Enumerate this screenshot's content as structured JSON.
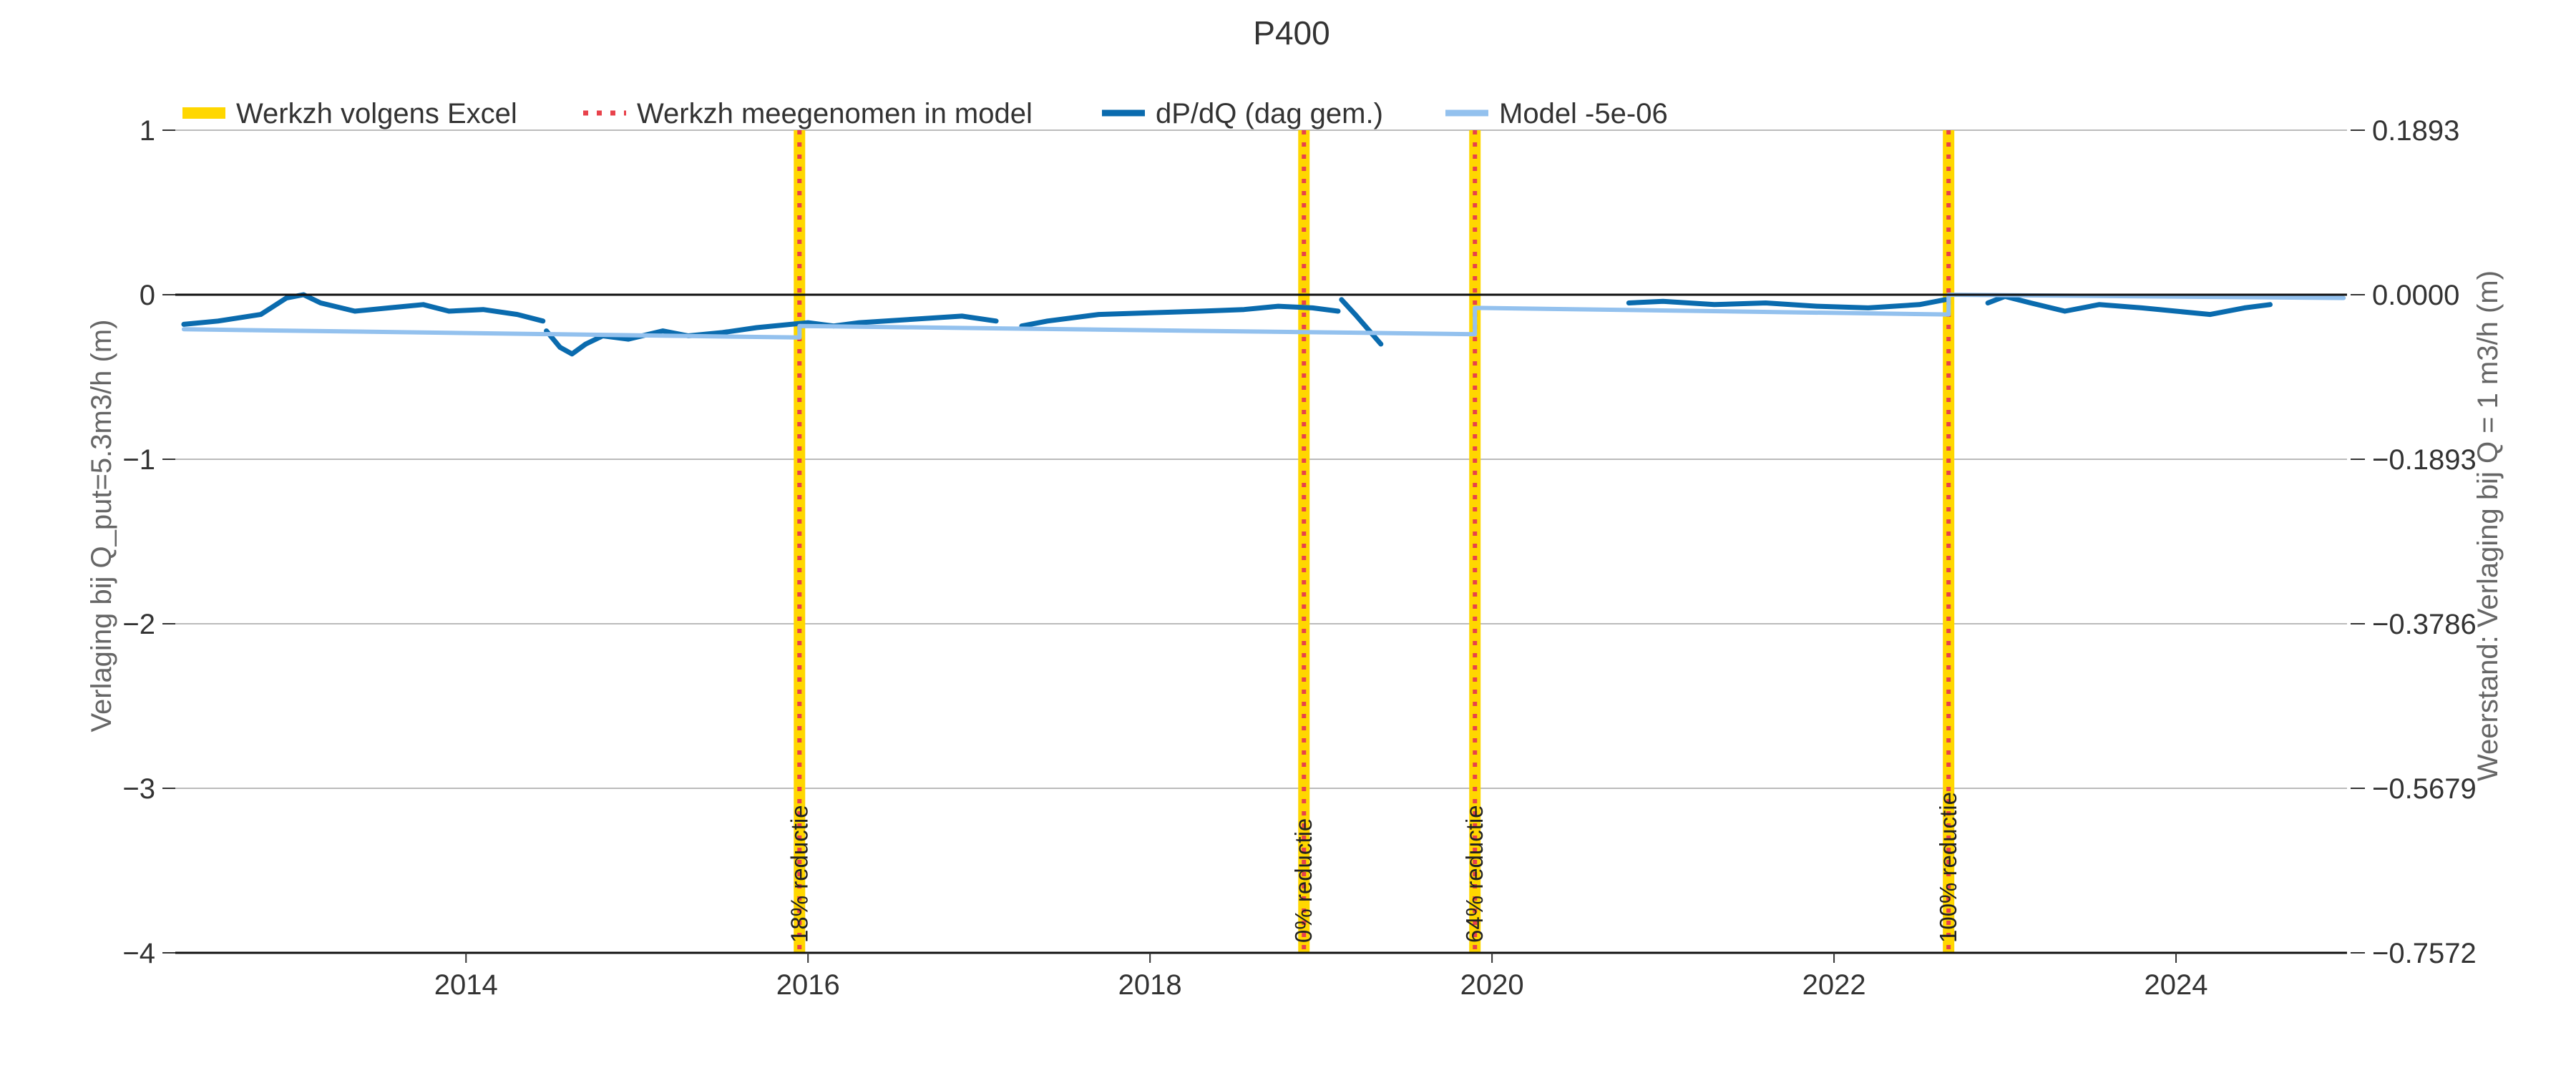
{
  "chart_data": {
    "type": "line",
    "title": "P400",
    "ylabel_left": "Verlaging bij Q_put=5.3m3/h (m)",
    "ylabel_right": "Weerstand: Verlaging bij Q = 1 m3/h (m)",
    "xlim": [
      2012.3,
      2025.0
    ],
    "ylim_left": [
      -4,
      1
    ],
    "ylim_right": [
      -0.7572,
      0.1893
    ],
    "x_ticks": [
      2014,
      2016,
      2018,
      2020,
      2022,
      2024
    ],
    "x_tick_labels": [
      "2014",
      "2016",
      "2018",
      "2020",
      "2022",
      "2024"
    ],
    "y_ticks_left": [
      1,
      0,
      -1,
      -2,
      -3,
      -4
    ],
    "y_tick_labels_left": [
      "1",
      "0",
      "−1",
      "−2",
      "−3",
      "−4"
    ],
    "y_tick_labels_right": [
      "0.1893",
      "0.0000",
      "−0.1893",
      "−0.3786",
      "−0.5679",
      "−0.7572"
    ],
    "grid": "horizontal",
    "legend": {
      "placement": "top-left",
      "entries": [
        {
          "label": "Werkzh volgens Excel",
          "color": "#FFD700",
          "style": "thick"
        },
        {
          "label": "Werkzh meegenomen in model",
          "color": "#E8424B",
          "style": "dotted"
        },
        {
          "label": "dP/dQ (dag gem.)",
          "color": "#0A6BAE",
          "style": "solid"
        },
        {
          "label": "Model -5e-06",
          "color": "#93C1EE",
          "style": "solid"
        }
      ]
    },
    "events": [
      {
        "x": 2015.95,
        "label": "18% reductie"
      },
      {
        "x": 2018.9,
        "label": "0% reductie"
      },
      {
        "x": 2019.9,
        "label": "64% reductie"
      },
      {
        "x": 2022.67,
        "label": "100% reductie"
      }
    ],
    "series": [
      {
        "name": "dP/dQ (dag gem.)",
        "color": "#0A6BAE",
        "segments": [
          [
            [
              2012.35,
              -0.18
            ],
            [
              2012.55,
              -0.16
            ],
            [
              2012.8,
              -0.12
            ],
            [
              2012.95,
              -0.02
            ],
            [
              2013.05,
              0.0
            ],
            [
              2013.15,
              -0.05
            ],
            [
              2013.35,
              -0.1
            ],
            [
              2013.55,
              -0.08
            ],
            [
              2013.75,
              -0.06
            ],
            [
              2013.9,
              -0.1
            ],
            [
              2014.1,
              -0.09
            ],
            [
              2014.3,
              -0.12
            ],
            [
              2014.45,
              -0.16
            ]
          ],
          [
            [
              2014.47,
              -0.22
            ],
            [
              2014.55,
              -0.32
            ],
            [
              2014.62,
              -0.36
            ],
            [
              2014.7,
              -0.3
            ],
            [
              2014.8,
              -0.25
            ],
            [
              2014.95,
              -0.27
            ],
            [
              2015.15,
              -0.22
            ],
            [
              2015.3,
              -0.25
            ],
            [
              2015.5,
              -0.23
            ],
            [
              2015.7,
              -0.2
            ],
            [
              2015.9,
              -0.18
            ],
            [
              2016.0,
              -0.17
            ],
            [
              2016.15,
              -0.19
            ],
            [
              2016.3,
              -0.17
            ],
            [
              2016.6,
              -0.15
            ],
            [
              2016.9,
              -0.13
            ],
            [
              2017.1,
              -0.16
            ]
          ],
          [
            [
              2017.25,
              -0.19
            ],
            [
              2017.4,
              -0.16
            ],
            [
              2017.7,
              -0.12
            ],
            [
              2018.0,
              -0.11
            ],
            [
              2018.3,
              -0.1
            ],
            [
              2018.55,
              -0.09
            ],
            [
              2018.75,
              -0.07
            ],
            [
              2018.95,
              -0.08
            ],
            [
              2019.1,
              -0.1
            ]
          ],
          [
            [
              2019.12,
              -0.03
            ],
            [
              2019.2,
              -0.12
            ],
            [
              2019.35,
              -0.3
            ]
          ],
          [
            [
              2020.8,
              -0.05
            ],
            [
              2021.0,
              -0.04
            ],
            [
              2021.3,
              -0.06
            ],
            [
              2021.6,
              -0.05
            ],
            [
              2021.9,
              -0.07
            ],
            [
              2022.2,
              -0.08
            ],
            [
              2022.5,
              -0.06
            ],
            [
              2022.65,
              -0.03
            ]
          ],
          [
            [
              2022.9,
              -0.05
            ],
            [
              2023.0,
              -0.01
            ],
            [
              2023.15,
              -0.05
            ],
            [
              2023.35,
              -0.1
            ],
            [
              2023.55,
              -0.06
            ],
            [
              2023.8,
              -0.08
            ],
            [
              2024.0,
              -0.1
            ],
            [
              2024.2,
              -0.12
            ],
            [
              2024.4,
              -0.08
            ],
            [
              2024.55,
              -0.06
            ]
          ]
        ]
      },
      {
        "name": "Model -5e-06",
        "color": "#93C1EE",
        "segments": [
          [
            [
              2012.35,
              -0.21
            ],
            [
              2015.95,
              -0.26
            ],
            [
              2015.95,
              -0.19
            ],
            [
              2019.9,
              -0.24
            ],
            [
              2019.9,
              -0.08
            ],
            [
              2022.67,
              -0.12
            ],
            [
              2022.67,
              0.0
            ],
            [
              2024.98,
              -0.02
            ]
          ]
        ]
      }
    ]
  }
}
